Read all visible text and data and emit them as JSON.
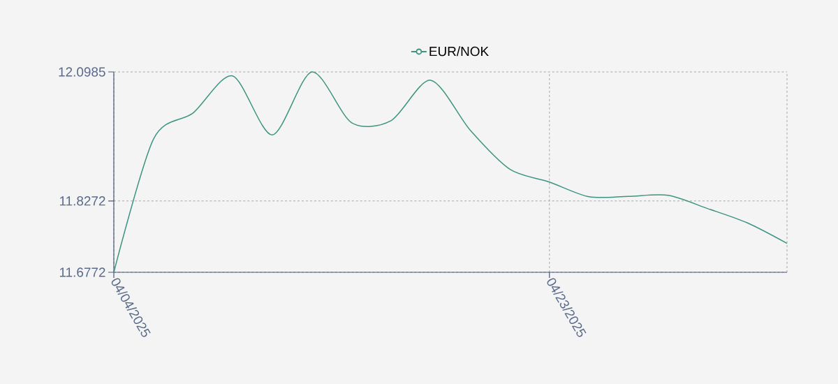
{
  "chart_data": {
    "type": "line",
    "categories": [
      "04/04/2025",
      null,
      null,
      null,
      null,
      null,
      null,
      null,
      null,
      null,
      null,
      "04/23/2025",
      null,
      null,
      null,
      null,
      null,
      null
    ],
    "series": [
      {
        "name": "EUR/NOK",
        "color": "#3d9480",
        "values": [
          11.6772,
          11.957,
          12.012,
          12.09,
          11.966,
          12.0985,
          11.992,
          11.996,
          12.081,
          11.976,
          11.894,
          11.867,
          11.836,
          11.837,
          11.839,
          11.811,
          11.781,
          11.738
        ]
      }
    ],
    "ylim": [
      11.6772,
      12.0985
    ],
    "yticks": [
      11.6772,
      11.8272,
      12.0985
    ],
    "grid": true,
    "legend": "top"
  }
}
